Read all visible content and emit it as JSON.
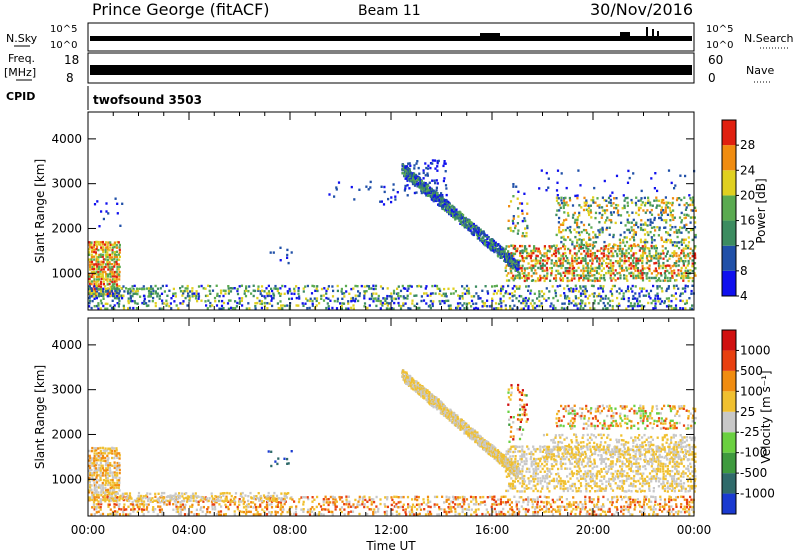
{
  "header": {
    "station": "Prince George (fitACF)",
    "beam": "Beam 11",
    "date": "30/Nov/2016"
  },
  "strips": {
    "nsky_label": "N.Sky",
    "nsky_ticks": [
      "10^5",
      "10^0"
    ],
    "nsearch_label": "N.Search",
    "nsearch_ticks": [
      "10^5",
      "10^0"
    ],
    "freq_label_1": "Freq.",
    "freq_label_2": "[MHz]",
    "freq_ticks": [
      "18",
      "8"
    ],
    "nave_label": "Nave",
    "nave_ticks": [
      "60",
      "0"
    ],
    "cpid_label": "CPID",
    "cpid_value": "twofsound 3503"
  },
  "chart_data": [
    {
      "type": "heatmap",
      "name": "power",
      "ylabel": "Slant Range [km]",
      "xlabel": "",
      "x_ticks": [
        "00:00",
        "04:00",
        "08:00",
        "12:00",
        "16:00",
        "20:00",
        "00:00"
      ],
      "y_ticks": [
        "1000",
        "2000",
        "3000",
        "4000"
      ],
      "ylim": [
        180,
        4600
      ],
      "colorbar_label": "Power [dB]",
      "colorbar_ticks": [
        "28",
        "24",
        "20",
        "16",
        "12",
        "8",
        "4"
      ],
      "colorbar_colors": [
        "#1010ee",
        "#2050a8",
        "#3c8c60",
        "#5aaa50",
        "#e0d020",
        "#f08c10",
        "#e02010"
      ],
      "scatter_regions": [
        {
          "t0": 0.0,
          "t1": 1.2,
          "r0": 500,
          "r1": 1700,
          "color_range": [
            3,
            6
          ],
          "density": 0.9
        },
        {
          "t0": 0.0,
          "t1": 2.8,
          "r0": 450,
          "r1": 650,
          "color_range": [
            1,
            3
          ],
          "density": 0.55
        },
        {
          "t0": 0.0,
          "t1": 24.0,
          "r0": 180,
          "r1": 700,
          "color_range": [
            0,
            4
          ],
          "density": 0.35
        },
        {
          "t0": 0.2,
          "t1": 1.3,
          "r0": 1800,
          "r1": 2700,
          "color_range": [
            0,
            1
          ],
          "density": 0.08
        },
        {
          "t0": 7.0,
          "t1": 8.0,
          "r0": 1200,
          "r1": 1600,
          "color_range": [
            0,
            1
          ],
          "density": 0.15
        },
        {
          "t0": 9.5,
          "t1": 12.2,
          "r0": 2500,
          "r1": 3000,
          "color_range": [
            0,
            1
          ],
          "density": 0.06
        },
        {
          "t0": 12.5,
          "t1": 14.2,
          "r0": 2700,
          "r1": 3500,
          "color_range": [
            0,
            1
          ],
          "density": 0.3
        },
        {
          "t0": 16.5,
          "t1": 24.0,
          "r0": 800,
          "r1": 1600,
          "color_range": [
            2,
            6
          ],
          "density": 0.6
        },
        {
          "t0": 18.5,
          "t1": 24.0,
          "r0": 1600,
          "r1": 2700,
          "color_range": [
            1,
            5
          ],
          "density": 0.35
        },
        {
          "t0": 16.6,
          "t1": 17.4,
          "r0": 1800,
          "r1": 3000,
          "color_range": [
            0,
            5
          ],
          "density": 0.2
        },
        {
          "t0": 17.0,
          "t1": 24.0,
          "r0": 2700,
          "r1": 3300,
          "color_range": [
            0,
            1
          ],
          "density": 0.05
        }
      ],
      "scatter_bands": [
        {
          "p0": [
            12.4,
            3300
          ],
          "p1": [
            17.0,
            1100
          ],
          "width": 260,
          "color_range": [
            0,
            3
          ],
          "density": 0.5
        }
      ]
    },
    {
      "type": "heatmap",
      "name": "velocity",
      "ylabel": "Slant Range [km]",
      "xlabel": "Time UT",
      "x_ticks": [
        "00:00",
        "04:00",
        "08:00",
        "12:00",
        "16:00",
        "20:00",
        "00:00"
      ],
      "y_ticks": [
        "1000",
        "2000",
        "3000",
        "4000"
      ],
      "ylim": [
        180,
        4600
      ],
      "colorbar_label": "Velocity [m s⁻¹]",
      "colorbar_ticks": [
        "1000",
        "500",
        "100",
        "25",
        "-25",
        "-100",
        "-500",
        "-1000"
      ],
      "colorbar_colors": [
        "#1a3ad0",
        "#2f6a6a",
        "#3e9a3e",
        "#6ad040",
        "#c8c8c8",
        "#f0c030",
        "#f08c10",
        "#e84010",
        "#d01010"
      ],
      "scatter_regions": [
        {
          "t0": 0.0,
          "t1": 1.2,
          "r0": 500,
          "r1": 1700,
          "color_range": [
            4,
            6
          ],
          "density": 0.85
        },
        {
          "t0": 0.0,
          "t1": 24.0,
          "r0": 180,
          "r1": 600,
          "color_range": [
            4,
            7
          ],
          "density": 0.45
        },
        {
          "t0": 0.5,
          "t1": 8.0,
          "r0": 480,
          "r1": 650,
          "color_range": [
            4,
            5
          ],
          "density": 0.5
        },
        {
          "t0": 16.5,
          "t1": 24.0,
          "r0": 700,
          "r1": 1700,
          "color_range": [
            4,
            5
          ],
          "density": 0.55
        },
        {
          "t0": 18.5,
          "t1": 24.0,
          "r0": 2100,
          "r1": 2600,
          "color_range": [
            3,
            7
          ],
          "density": 0.4
        },
        {
          "t0": 16.6,
          "t1": 17.4,
          "r0": 1800,
          "r1": 3100,
          "color_range": [
            2,
            8
          ],
          "density": 0.25
        },
        {
          "t0": 18.0,
          "t1": 24.0,
          "r0": 1400,
          "r1": 2000,
          "color_range": [
            4,
            5
          ],
          "density": 0.4
        },
        {
          "t0": 7.0,
          "t1": 8.0,
          "r0": 1200,
          "r1": 1600,
          "color_range": [
            0,
            1
          ],
          "density": 0.1
        }
      ],
      "scatter_bands": [
        {
          "p0": [
            12.4,
            3300
          ],
          "p1": [
            17.0,
            1100
          ],
          "width": 260,
          "color_range": [
            4,
            5
          ],
          "density": 0.6
        }
      ]
    }
  ]
}
